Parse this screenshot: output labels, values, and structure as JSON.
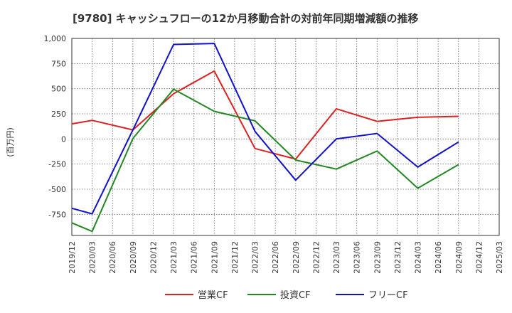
{
  "chart_data": {
    "type": "line",
    "title": "[9780]  キャッシュフローの12か月移動合計の対前年同期増減額の推移",
    "xlabel": "",
    "ylabel": "(百万円)",
    "ylim": [
      -960,
      1000
    ],
    "grid": true,
    "legend_position": "bottom",
    "x_ticks": [
      "2019/12",
      "2020/03",
      "2020/06",
      "2020/09",
      "2020/12",
      "2021/03",
      "2021/06",
      "2021/09",
      "2021/12",
      "2022/03",
      "2022/06",
      "2022/09",
      "2022/12",
      "2023/03",
      "2023/06",
      "2023/09",
      "2023/12",
      "2024/03",
      "2024/06",
      "2024/09",
      "2024/12",
      "2025/03"
    ],
    "y_ticks": [
      1000,
      750,
      500,
      250,
      0,
      -250,
      -500,
      -750
    ],
    "y_tick_labels": [
      "1,000",
      "750",
      "500",
      "250",
      "0",
      "-250",
      "-500",
      "-750"
    ],
    "series": [
      {
        "name": "営業CF",
        "color": "#dd2222",
        "points": [
          {
            "x": "2019/12",
            "y": 150
          },
          {
            "x": "2020/03",
            "y": 185
          },
          {
            "x": "2020/09",
            "y": 90
          },
          {
            "x": "2021/03",
            "y": 450
          },
          {
            "x": "2021/09",
            "y": 675
          },
          {
            "x": "2022/03",
            "y": -95
          },
          {
            "x": "2022/09",
            "y": -200
          },
          {
            "x": "2023/03",
            "y": 300
          },
          {
            "x": "2023/09",
            "y": 175
          },
          {
            "x": "2024/03",
            "y": 215
          },
          {
            "x": "2024/09",
            "y": 225
          }
        ]
      },
      {
        "name": "投資CF",
        "color": "#228822",
        "points": [
          {
            "x": "2019/12",
            "y": -835
          },
          {
            "x": "2020/03",
            "y": -920
          },
          {
            "x": "2020/09",
            "y": 5
          },
          {
            "x": "2021/03",
            "y": 495
          },
          {
            "x": "2021/09",
            "y": 275
          },
          {
            "x": "2022/03",
            "y": 180
          },
          {
            "x": "2022/09",
            "y": -210
          },
          {
            "x": "2023/03",
            "y": -300
          },
          {
            "x": "2023/09",
            "y": -120
          },
          {
            "x": "2024/03",
            "y": -490
          },
          {
            "x": "2024/09",
            "y": -255
          }
        ]
      },
      {
        "name": "フリーCF",
        "color": "#1111cc",
        "points": [
          {
            "x": "2019/12",
            "y": -690
          },
          {
            "x": "2020/03",
            "y": -745
          },
          {
            "x": "2020/09",
            "y": 90
          },
          {
            "x": "2021/03",
            "y": 940
          },
          {
            "x": "2021/09",
            "y": 950
          },
          {
            "x": "2022/03",
            "y": 75
          },
          {
            "x": "2022/09",
            "y": -410
          },
          {
            "x": "2023/03",
            "y": 0
          },
          {
            "x": "2023/09",
            "y": 55
          },
          {
            "x": "2024/03",
            "y": -280
          },
          {
            "x": "2024/09",
            "y": -30
          }
        ]
      }
    ]
  }
}
